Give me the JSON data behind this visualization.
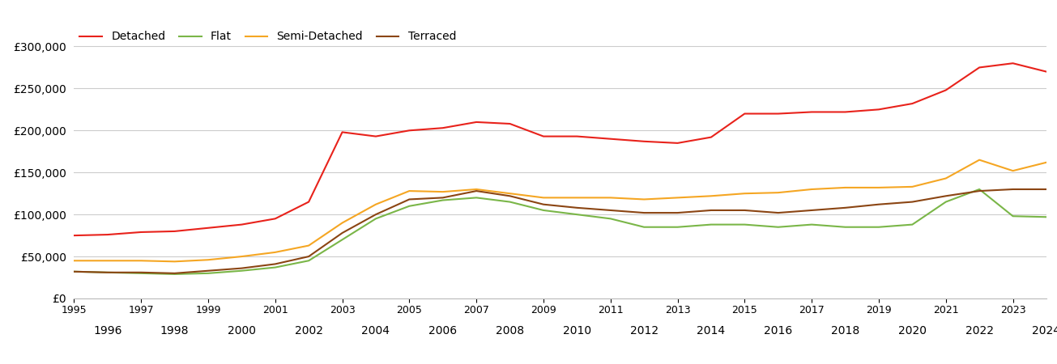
{
  "years": [
    1995,
    1996,
    1997,
    1998,
    1999,
    2000,
    2001,
    2002,
    2003,
    2004,
    2005,
    2006,
    2007,
    2008,
    2009,
    2010,
    2011,
    2012,
    2013,
    2014,
    2015,
    2016,
    2017,
    2018,
    2019,
    2020,
    2021,
    2022,
    2023,
    2024
  ],
  "detached": [
    75000,
    76000,
    79000,
    80000,
    84000,
    88000,
    95000,
    115000,
    198000,
    193000,
    200000,
    203000,
    210000,
    208000,
    193000,
    193000,
    190000,
    187000,
    185000,
    192000,
    220000,
    220000,
    222000,
    222000,
    225000,
    232000,
    248000,
    275000,
    280000,
    270000
  ],
  "flat": [
    32000,
    31000,
    30000,
    29000,
    30000,
    33000,
    37000,
    45000,
    70000,
    95000,
    110000,
    117000,
    120000,
    115000,
    105000,
    100000,
    95000,
    85000,
    85000,
    88000,
    88000,
    85000,
    88000,
    85000,
    85000,
    88000,
    115000,
    130000,
    98000,
    97000
  ],
  "semi_detached": [
    45000,
    45000,
    45000,
    44000,
    46000,
    50000,
    55000,
    63000,
    90000,
    112000,
    128000,
    127000,
    130000,
    125000,
    120000,
    120000,
    120000,
    118000,
    120000,
    122000,
    125000,
    126000,
    130000,
    132000,
    132000,
    133000,
    143000,
    165000,
    152000,
    162000
  ],
  "terraced": [
    32000,
    31000,
    31000,
    30000,
    33000,
    36000,
    41000,
    50000,
    78000,
    100000,
    118000,
    120000,
    128000,
    122000,
    112000,
    108000,
    105000,
    102000,
    102000,
    105000,
    105000,
    102000,
    105000,
    108000,
    112000,
    115000,
    122000,
    128000,
    130000,
    130000
  ],
  "colors": {
    "detached": "#e8221b",
    "flat": "#7ab648",
    "semi_detached": "#f5a623",
    "terraced": "#8b4513"
  },
  "ylim": [
    0,
    325000
  ],
  "yticks": [
    0,
    50000,
    100000,
    150000,
    200000,
    250000,
    300000
  ],
  "background_color": "#ffffff",
  "grid_color": "#cccccc",
  "legend_labels": [
    "Detached",
    "Flat",
    "Semi-Detached",
    "Terraced"
  ]
}
